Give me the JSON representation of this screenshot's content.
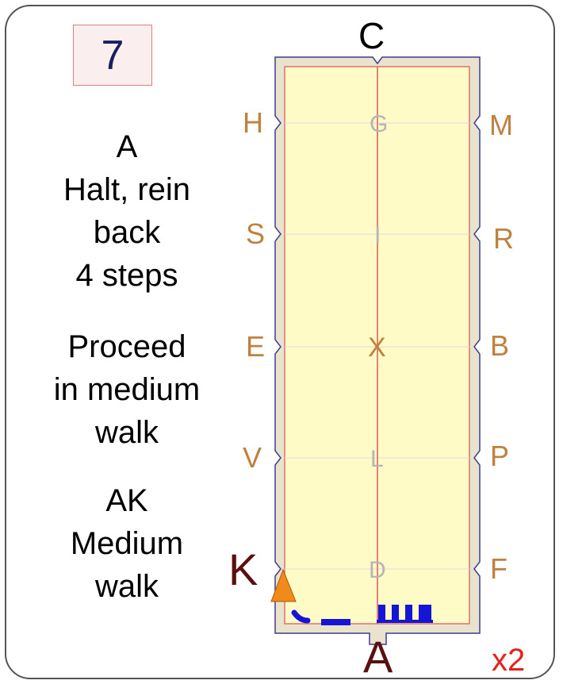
{
  "card_number": "7",
  "instructions": {
    "block1": [
      "A",
      "Halt, rein",
      "back",
      "4 steps"
    ],
    "block2": [
      "Proceed",
      "in medium",
      "walk"
    ],
    "block3": [
      "AK",
      "Medium",
      "walk"
    ]
  },
  "arena_letters": {
    "top": "C",
    "bottom": "A",
    "left": [
      "H",
      "S",
      "E",
      "V",
      "K"
    ],
    "right": [
      "M",
      "R",
      "B",
      "P",
      "F"
    ],
    "centerline": [
      "G",
      "I",
      "X",
      "L",
      "D"
    ]
  },
  "repeat_label": "x2",
  "colors": {
    "arena_fill": "#fffbc7",
    "arena_border": "#e8e0c8",
    "letter_side": "#c0803e",
    "letter_center": "#b5b5b5",
    "path_blue": "#1515d6",
    "arrow_orange": "#f08a1a",
    "repeat_red": "#e8201a"
  }
}
